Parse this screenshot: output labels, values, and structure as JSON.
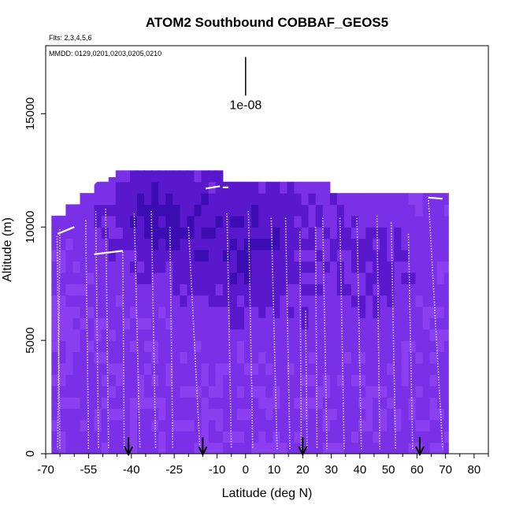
{
  "chart_data": {
    "type": "heatmap",
    "title": "ATOM2 Southbound COBBAF_GEOS5",
    "subtitle_flights": "Flts: 2,3,4,5,6",
    "subtitle_dates": "MMDD: 0129,0201,0203,0205,0210",
    "xlabel": "Latitude (deg N)",
    "ylabel": "Altitude (m)",
    "xlim": [
      -70,
      85
    ],
    "ylim": [
      0,
      18000
    ],
    "x_ticks": [
      -70,
      -55,
      -40,
      -25,
      -10,
      0,
      10,
      20,
      30,
      40,
      50,
      60,
      70,
      80
    ],
    "x_minor_ticks": [
      -65,
      -60,
      -50,
      -45,
      -35,
      -30,
      -20,
      -15,
      -5,
      5,
      15,
      25,
      35,
      45,
      55,
      65,
      75,
      85
    ],
    "y_ticks": [
      0,
      5000,
      10000,
      15000
    ],
    "scale_label": "1e-08",
    "scale_bar_altitude_range": [
      15800,
      17500
    ],
    "scale_bar_lat": 0,
    "flight_break_arrows_lat": [
      -41,
      -15,
      20,
      61
    ],
    "colormap": [
      "#8a3ff0",
      "#7a30e6",
      "#5a18cc",
      "#3a0cb2",
      "#1e0696"
    ],
    "curtain_outline": [
      {
        "lat_from": -68,
        "lat_to": -65,
        "top_alt": 10500
      },
      {
        "lat_from": -65,
        "lat_to": -60,
        "top_alt": 11000
      },
      {
        "lat_from": -60,
        "lat_to": -55,
        "top_alt": 11500
      },
      {
        "lat_from": -55,
        "lat_to": -50,
        "top_alt": 12000
      },
      {
        "lat_from": -50,
        "lat_to": -47,
        "top_alt": 12200
      },
      {
        "lat_from": -47,
        "lat_to": -10,
        "top_alt": 12500
      },
      {
        "lat_from": -10,
        "lat_to": 29,
        "top_alt": 12000
      },
      {
        "lat_from": 29,
        "lat_to": 71,
        "top_alt": 11500
      }
    ],
    "curtain_range_lat": [
      -68,
      71
    ],
    "profiles": [
      {
        "lat_top": -66,
        "lat_bot": -65,
        "top_alt": 9600
      },
      {
        "lat_top": -65,
        "lat_bot": -65.8,
        "top_alt": 9900
      },
      {
        "lat_top": -56,
        "lat_bot": -55,
        "top_alt": 10300
      },
      {
        "lat_top": -52.5,
        "lat_bot": -51.5,
        "top_alt": 10700
      },
      {
        "lat_top": -49,
        "lat_bot": -48,
        "top_alt": 10800
      },
      {
        "lat_top": -43,
        "lat_bot": -42.5,
        "top_alt": 8900
      },
      {
        "lat_top": -39,
        "lat_bot": -37,
        "top_alt": 10600
      },
      {
        "lat_top": -33,
        "lat_bot": -31.5,
        "top_alt": 10700
      },
      {
        "lat_top": -26.5,
        "lat_bot": -25.5,
        "top_alt": 10000
      },
      {
        "lat_top": -20,
        "lat_bot": -16,
        "top_alt": 10000
      },
      {
        "lat_top": -6.5,
        "lat_bot": -5,
        "top_alt": 10600
      },
      {
        "lat_top": 1,
        "lat_bot": 2.5,
        "top_alt": 10700
      },
      {
        "lat_top": 9,
        "lat_bot": 11,
        "top_alt": 10400
      },
      {
        "lat_top": 14,
        "lat_bot": 15.5,
        "top_alt": 10400
      },
      {
        "lat_top": 19,
        "lat_bot": 19.5,
        "top_alt": 9800
      },
      {
        "lat_top": 21,
        "lat_bot": 21.5,
        "top_alt": 6300
      },
      {
        "lat_top": 24.5,
        "lat_bot": 25,
        "top_alt": 10000
      },
      {
        "lat_top": 27,
        "lat_bot": 28.5,
        "top_alt": 10400
      },
      {
        "lat_top": 33,
        "lat_bot": 34.5,
        "top_alt": 10400
      },
      {
        "lat_top": 39,
        "lat_bot": 40.5,
        "top_alt": 10400
      },
      {
        "lat_top": 46,
        "lat_bot": 47,
        "top_alt": 10500
      },
      {
        "lat_top": 51,
        "lat_bot": 52.5,
        "top_alt": 10200
      },
      {
        "lat_top": 57,
        "lat_bot": 58.5,
        "top_alt": 9700
      },
      {
        "lat_top": 64,
        "lat_bot": 69,
        "top_alt": 11300
      }
    ],
    "horizontal_legs": [
      {
        "lat_from": -65.8,
        "lat_to": -60,
        "alt_from": 9700,
        "alt_to": 10000
      },
      {
        "lat_from": -55,
        "lat_to": -52.5,
        "alt_from": 11600,
        "alt_to": 12000
      },
      {
        "lat_from": -52.5,
        "lat_to": -46,
        "alt_from": 12000,
        "alt_to": 12400
      },
      {
        "lat_from": -53,
        "lat_to": -43,
        "alt_from": 8800,
        "alt_to": 8950
      },
      {
        "lat_from": -8,
        "lat_to": -6,
        "alt_from": 11750,
        "alt_to": 11750
      },
      {
        "lat_from": -14,
        "lat_to": -9,
        "alt_from": 11700,
        "alt_to": 11800
      },
      {
        "lat_from": 64,
        "lat_to": 69,
        "alt_from": 11300,
        "alt_to": 11250
      }
    ]
  }
}
